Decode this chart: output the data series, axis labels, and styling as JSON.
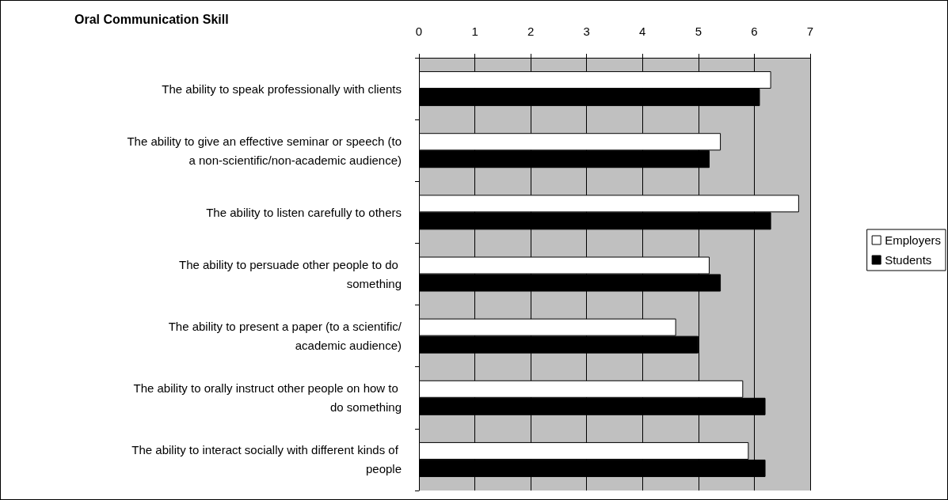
{
  "chart_data": {
    "type": "bar",
    "orientation": "horizontal",
    "title": "Oral Communication Skill",
    "categories": [
      "The ability to speak professionally with clients",
      "The ability to give an effective seminar or speech (to a non-scientific/non-academic audience)",
      "The ability to listen carefully to others",
      "The ability to persuade other people to do something",
      "The ability to present a paper (to a scientific/academic audience)",
      "The ability to orally instruct other people on how to do something",
      "The ability to interact socially with different kinds of people"
    ],
    "series": [
      {
        "name": "Employers",
        "color": "#ffffff",
        "values": [
          6.3,
          5.4,
          6.8,
          5.2,
          4.6,
          5.8,
          5.9
        ]
      },
      {
        "name": "Students",
        "color": "#000000",
        "values": [
          6.1,
          5.2,
          6.3,
          5.4,
          5.0,
          6.2,
          6.2
        ]
      }
    ],
    "xlim": [
      0,
      7
    ],
    "xticks": [
      0,
      1,
      2,
      3,
      4,
      5,
      6,
      7
    ],
    "grid": "x",
    "legend": "right"
  }
}
